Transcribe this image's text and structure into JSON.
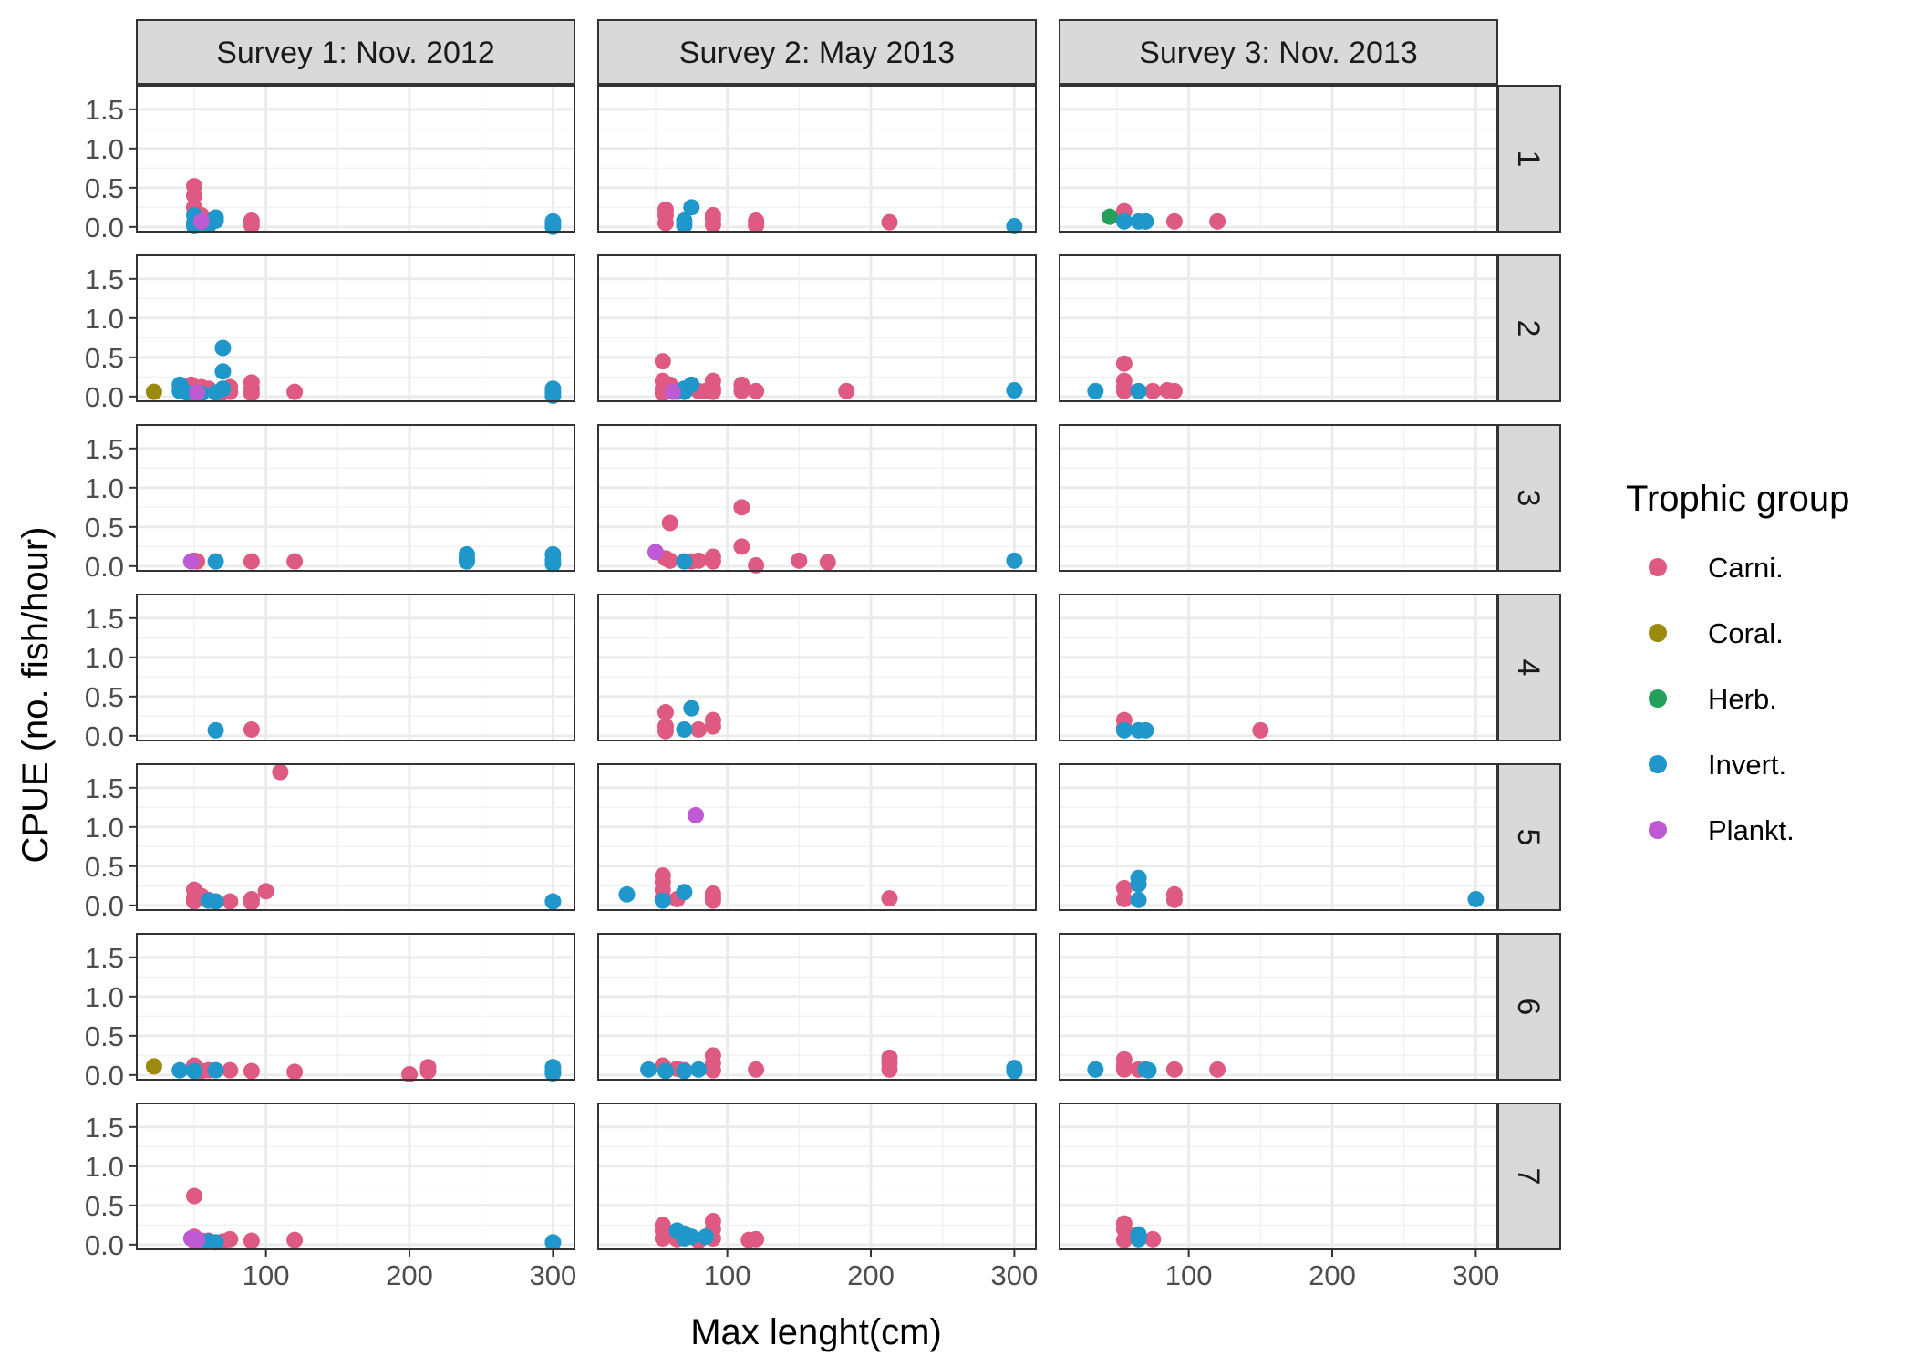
{
  "chart_data": {
    "type": "scatter",
    "xlabel": "Max lenght(cm)",
    "ylabel": "CPUE (no. fish/hour)",
    "xlim": [
      10,
      315
    ],
    "ylim": [
      -0.06,
      1.8
    ],
    "x_ticks": [
      100,
      200,
      300
    ],
    "x_tick_labels": [
      "100",
      "200",
      "300"
    ],
    "y_ticks": [
      0.0,
      0.5,
      1.0,
      1.5
    ],
    "y_tick_labels": [
      "0.0",
      "0.5",
      "1.0",
      "1.5"
    ],
    "grid": true,
    "legend_position": "right",
    "legend_title": "Trophic group",
    "groups": [
      {
        "name": "Carni.",
        "color": "#de5a82"
      },
      {
        "name": "Coral.",
        "color": "#9c8a0e"
      },
      {
        "name": "Herb.",
        "color": "#23a05a"
      },
      {
        "name": "Invert.",
        "color": "#1f97ca"
      },
      {
        "name": "Plankt.",
        "color": "#bf5ad4"
      }
    ],
    "columns": [
      "Survey 1: Nov. 2012",
      "Survey 2: May 2013",
      "Survey 3: Nov. 2013"
    ],
    "rows": [
      "1",
      "2",
      "3",
      "4",
      "5",
      "6",
      "7"
    ],
    "panels": [
      [
        {
          "Carni.": [
            [
              50,
              0.52
            ],
            [
              50,
              0.4
            ],
            [
              50,
              0.25
            ],
            [
              55,
              0.15
            ],
            [
              60,
              0.05
            ],
            [
              90,
              0.08
            ],
            [
              90,
              0.02
            ]
          ],
          "Invert.": [
            [
              50,
              0.15
            ],
            [
              50,
              0.05
            ],
            [
              50,
              0.01
            ],
            [
              60,
              0.02
            ],
            [
              65,
              0.12
            ],
            [
              65,
              0.08
            ],
            [
              300,
              0.07
            ],
            [
              300,
              0.03
            ],
            [
              300,
              0.0
            ]
          ],
          "Plankt.": [
            [
              55,
              0.07
            ]
          ]
        },
        {
          "Carni.": [
            [
              48,
              0.15
            ],
            [
              50,
              0.05
            ],
            [
              55,
              0.12
            ],
            [
              55,
              0.08
            ],
            [
              60,
              0.1
            ],
            [
              70,
              0.05
            ],
            [
              75,
              0.12
            ],
            [
              75,
              0.06
            ],
            [
              90,
              0.18
            ],
            [
              90,
              0.1
            ],
            [
              90,
              0.04
            ],
            [
              120,
              0.06
            ]
          ],
          "Coral.": [
            [
              22,
              0.06
            ]
          ],
          "Invert.": [
            [
              40,
              0.15
            ],
            [
              40,
              0.07
            ],
            [
              45,
              0.05
            ],
            [
              55,
              0.04
            ],
            [
              65,
              0.05
            ],
            [
              70,
              0.62
            ],
            [
              70,
              0.32
            ],
            [
              70,
              0.1
            ],
            [
              300,
              0.1
            ],
            [
              300,
              0.05
            ],
            [
              300,
              0.01
            ]
          ],
          "Plankt.": [
            [
              52,
              0.05
            ]
          ]
        },
        {
          "Carni.": [
            [
              50,
              0.07
            ],
            [
              52,
              0.06
            ],
            [
              90,
              0.06
            ],
            [
              120,
              0.06
            ]
          ],
          "Invert.": [
            [
              65,
              0.06
            ],
            [
              240,
              0.15
            ],
            [
              240,
              0.1
            ],
            [
              240,
              0.06
            ],
            [
              300,
              0.15
            ],
            [
              300,
              0.08
            ],
            [
              300,
              0.03
            ]
          ],
          "Plankt.": [
            [
              48,
              0.06
            ]
          ]
        },
        {
          "Carni.": [
            [
              90,
              0.08
            ]
          ],
          "Invert.": [
            [
              65,
              0.07
            ]
          ]
        },
        {
          "Carni.": [
            [
              50,
              0.2
            ],
            [
              50,
              0.1
            ],
            [
              50,
              0.05
            ],
            [
              55,
              0.12
            ],
            [
              60,
              0.07
            ],
            [
              75,
              0.05
            ],
            [
              90,
              0.08
            ],
            [
              90,
              0.04
            ],
            [
              100,
              0.18
            ],
            [
              110,
              1.7
            ]
          ],
          "Invert.": [
            [
              60,
              0.06
            ],
            [
              65,
              0.05
            ],
            [
              300,
              0.05
            ]
          ]
        },
        {
          "Carni.": [
            [
              50,
              0.12
            ],
            [
              55,
              0.05
            ],
            [
              60,
              0.06
            ],
            [
              75,
              0.06
            ],
            [
              90,
              0.05
            ],
            [
              120,
              0.04
            ],
            [
              200,
              0.01
            ],
            [
              213,
              0.1
            ],
            [
              213,
              0.05
            ]
          ],
          "Coral.": [
            [
              22,
              0.11
            ]
          ],
          "Invert.": [
            [
              40,
              0.06
            ],
            [
              50,
              0.05
            ],
            [
              65,
              0.06
            ],
            [
              300,
              0.1
            ],
            [
              300,
              0.05
            ],
            [
              300,
              0.02
            ]
          ]
        },
        {
          "Carni.": [
            [
              50,
              0.62
            ],
            [
              50,
              0.1
            ],
            [
              50,
              0.05
            ],
            [
              55,
              0.05
            ],
            [
              60,
              0.05
            ],
            [
              70,
              0.04
            ],
            [
              75,
              0.07
            ],
            [
              90,
              0.05
            ],
            [
              120,
              0.06
            ]
          ],
          "Invert.": [
            [
              60,
              0.04
            ],
            [
              65,
              0.03
            ],
            [
              300,
              0.03
            ]
          ],
          "Plankt.": [
            [
              48,
              0.08
            ],
            [
              52,
              0.06
            ]
          ]
        }
      ],
      [
        {
          "Carni.": [
            [
              57,
              0.22
            ],
            [
              57,
              0.15
            ],
            [
              57,
              0.05
            ],
            [
              90,
              0.15
            ],
            [
              90,
              0.1
            ],
            [
              90,
              0.03
            ],
            [
              120,
              0.08
            ],
            [
              120,
              0.02
            ],
            [
              213,
              0.06
            ]
          ],
          "Invert.": [
            [
              70,
              0.08
            ],
            [
              70,
              0.02
            ],
            [
              75,
              0.25
            ],
            [
              300,
              0.01
            ]
          ]
        },
        {
          "Carni.": [
            [
              55,
              0.45
            ],
            [
              55,
              0.2
            ],
            [
              55,
              0.1
            ],
            [
              55,
              0.04
            ],
            [
              60,
              0.15
            ],
            [
              60,
              0.08
            ],
            [
              65,
              0.06
            ],
            [
              80,
              0.07
            ],
            [
              85,
              0.07
            ],
            [
              90,
              0.2
            ],
            [
              90,
              0.1
            ],
            [
              90,
              0.06
            ],
            [
              110,
              0.15
            ],
            [
              110,
              0.07
            ],
            [
              120,
              0.07
            ],
            [
              183,
              0.07
            ]
          ],
          "Invert.": [
            [
              70,
              0.1
            ],
            [
              70,
              0.06
            ],
            [
              75,
              0.15
            ],
            [
              300,
              0.08
            ]
          ],
          "Plankt.": [
            [
              62,
              0.06
            ]
          ]
        },
        {
          "Carni.": [
            [
              57,
              0.1
            ],
            [
              60,
              0.55
            ],
            [
              60,
              0.07
            ],
            [
              75,
              0.06
            ],
            [
              80,
              0.07
            ],
            [
              90,
              0.12
            ],
            [
              90,
              0.06
            ],
            [
              110,
              0.75
            ],
            [
              110,
              0.25
            ],
            [
              120,
              0.01
            ],
            [
              150,
              0.07
            ],
            [
              170,
              0.05
            ]
          ],
          "Invert.": [
            [
              70,
              0.06
            ],
            [
              300,
              0.07
            ]
          ],
          "Plankt.": [
            [
              50,
              0.18
            ]
          ]
        },
        {
          "Carni.": [
            [
              57,
              0.3
            ],
            [
              57,
              0.12
            ],
            [
              57,
              0.06
            ],
            [
              80,
              0.08
            ],
            [
              90,
              0.2
            ],
            [
              90,
              0.12
            ]
          ],
          "Invert.": [
            [
              70,
              0.08
            ],
            [
              75,
              0.35
            ]
          ]
        },
        {
          "Carni.": [
            [
              55,
              0.38
            ],
            [
              55,
              0.3
            ],
            [
              55,
              0.2
            ],
            [
              55,
              0.1
            ],
            [
              65,
              0.08
            ],
            [
              90,
              0.15
            ],
            [
              90,
              0.1
            ],
            [
              90,
              0.06
            ],
            [
              213,
              0.09
            ]
          ],
          "Invert.": [
            [
              30,
              0.14
            ],
            [
              55,
              0.06
            ],
            [
              70,
              0.17
            ]
          ],
          "Plankt.": [
            [
              78,
              1.15
            ]
          ]
        },
        {
          "Carni.": [
            [
              55,
              0.12
            ],
            [
              65,
              0.08
            ],
            [
              70,
              0.06
            ],
            [
              90,
              0.25
            ],
            [
              90,
              0.15
            ],
            [
              90,
              0.06
            ],
            [
              120,
              0.07
            ],
            [
              213,
              0.22
            ],
            [
              213,
              0.15
            ],
            [
              213,
              0.07
            ]
          ],
          "Invert.": [
            [
              45,
              0.07
            ],
            [
              57,
              0.05
            ],
            [
              70,
              0.05
            ],
            [
              80,
              0.07
            ],
            [
              300,
              0.09
            ],
            [
              300,
              0.05
            ]
          ]
        },
        {
          "Carni.": [
            [
              55,
              0.25
            ],
            [
              55,
              0.18
            ],
            [
              55,
              0.08
            ],
            [
              60,
              0.12
            ],
            [
              65,
              0.07
            ],
            [
              80,
              0.05
            ],
            [
              90,
              0.3
            ],
            [
              90,
              0.2
            ],
            [
              90,
              0.08
            ],
            [
              115,
              0.06
            ],
            [
              120,
              0.07
            ]
          ],
          "Invert.": [
            [
              65,
              0.18
            ],
            [
              70,
              0.14
            ],
            [
              70,
              0.08
            ],
            [
              75,
              0.1
            ],
            [
              85,
              0.1
            ]
          ]
        }
      ],
      [
        {
          "Carni.": [
            [
              55,
              0.2
            ],
            [
              90,
              0.07
            ],
            [
              120,
              0.07
            ]
          ],
          "Herb.": [
            [
              45,
              0.13
            ]
          ],
          "Invert.": [
            [
              55,
              0.07
            ],
            [
              65,
              0.07
            ],
            [
              70,
              0.07
            ]
          ]
        },
        {
          "Carni.": [
            [
              55,
              0.42
            ],
            [
              55,
              0.2
            ],
            [
              55,
              0.12
            ],
            [
              55,
              0.07
            ],
            [
              75,
              0.07
            ],
            [
              85,
              0.08
            ],
            [
              90,
              0.07
            ]
          ],
          "Invert.": [
            [
              35,
              0.07
            ],
            [
              65,
              0.07
            ]
          ]
        },
        {},
        {
          "Carni.": [
            [
              55,
              0.2
            ],
            [
              55,
              0.1
            ],
            [
              150,
              0.07
            ]
          ],
          "Invert.": [
            [
              55,
              0.07
            ],
            [
              65,
              0.07
            ],
            [
              70,
              0.07
            ]
          ]
        },
        {
          "Carni.": [
            [
              55,
              0.22
            ],
            [
              55,
              0.08
            ],
            [
              90,
              0.14
            ],
            [
              90,
              0.07
            ]
          ],
          "Invert.": [
            [
              65,
              0.35
            ],
            [
              65,
              0.27
            ],
            [
              65,
              0.07
            ],
            [
              300,
              0.08
            ]
          ]
        },
        {
          "Carni.": [
            [
              55,
              0.2
            ],
            [
              55,
              0.12
            ],
            [
              55,
              0.07
            ],
            [
              65,
              0.07
            ],
            [
              90,
              0.07
            ],
            [
              120,
              0.07
            ]
          ],
          "Invert.": [
            [
              35,
              0.07
            ],
            [
              70,
              0.07
            ],
            [
              72,
              0.06
            ]
          ]
        },
        {
          "Carni.": [
            [
              55,
              0.27
            ],
            [
              55,
              0.2
            ],
            [
              55,
              0.06
            ],
            [
              75,
              0.07
            ]
          ],
          "Invert.": [
            [
              65,
              0.13
            ],
            [
              65,
              0.07
            ]
          ]
        }
      ]
    ]
  }
}
